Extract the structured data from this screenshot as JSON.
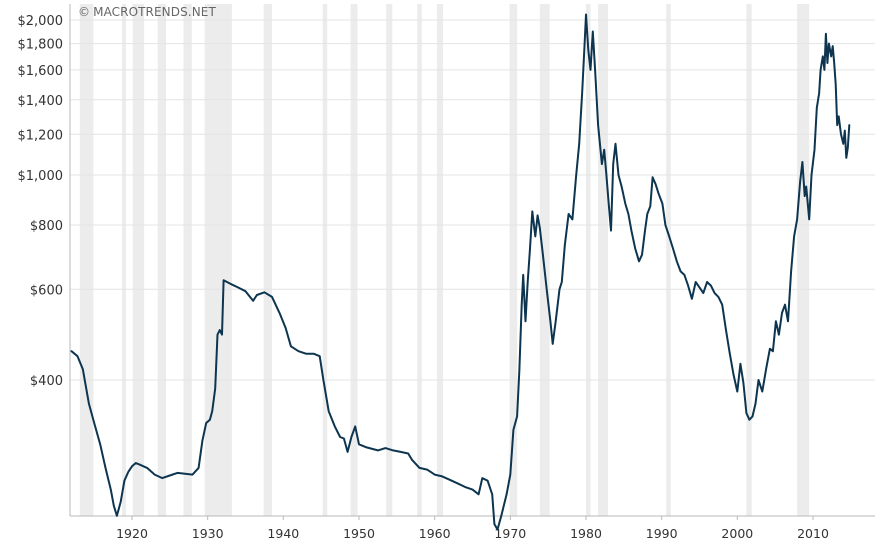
{
  "watermark": {
    "symbol": "©",
    "text": "MACROTRENDS.NET"
  },
  "chart_data": {
    "type": "line",
    "title": "",
    "xlabel": "",
    "ylabel": "",
    "y_scale": "log",
    "xlim": [
      1912.0,
      2014.8
    ],
    "ylim": [
      200,
      2050
    ],
    "x_ticks": [
      {
        "value": 1920,
        "label": "1920"
      },
      {
        "value": 1930,
        "label": "1930"
      },
      {
        "value": 1940,
        "label": "1940"
      },
      {
        "value": 1950,
        "label": "1950"
      },
      {
        "value": 1960,
        "label": "1960"
      },
      {
        "value": 1970,
        "label": "1970"
      },
      {
        "value": 1980,
        "label": "1980"
      },
      {
        "value": 1990,
        "label": "1990"
      },
      {
        "value": 2000,
        "label": "2000"
      },
      {
        "value": 2010,
        "label": "2010"
      }
    ],
    "y_ticks": [
      {
        "value": 400,
        "label": "$400"
      },
      {
        "value": 600,
        "label": "$600"
      },
      {
        "value": 800,
        "label": "$800"
      },
      {
        "value": 1000,
        "label": "$1,000"
      },
      {
        "value": 1200,
        "label": "$1,200"
      },
      {
        "value": 1400,
        "label": "$1,400"
      },
      {
        "value": 1600,
        "label": "$1,600"
      },
      {
        "value": 1800,
        "label": "$1,800"
      },
      {
        "value": 2000,
        "label": "$2,000"
      }
    ],
    "grid": true,
    "colors": {
      "line": "#0d3550",
      "recession": "#ececec",
      "grid": "#e4e4e4",
      "axis": "#b8b8b8"
    },
    "recessions": [
      [
        1913.1,
        1914.9
      ],
      [
        1918.7,
        1919.2
      ],
      [
        1920.1,
        1921.6
      ],
      [
        1923.4,
        1924.5
      ],
      [
        1926.8,
        1927.9
      ],
      [
        1929.6,
        1933.2
      ],
      [
        1937.4,
        1938.5
      ],
      [
        1945.2,
        1945.8
      ],
      [
        1948.9,
        1949.8
      ],
      [
        1953.6,
        1954.4
      ],
      [
        1957.7,
        1958.3
      ],
      [
        1960.3,
        1961.1
      ],
      [
        1969.9,
        1970.9
      ],
      [
        1973.9,
        1975.2
      ],
      [
        1980.0,
        1980.6
      ],
      [
        1981.6,
        1982.9
      ],
      [
        1990.6,
        1991.2
      ],
      [
        2001.2,
        2001.9
      ],
      [
        2007.9,
        2009.5
      ]
    ],
    "series": [
      {
        "values": [
          [
            1912.0,
            455
          ],
          [
            1912.8,
            445
          ],
          [
            1913.5,
            420
          ],
          [
            1914.3,
            360
          ],
          [
            1915.0,
            330
          ],
          [
            1915.8,
            300
          ],
          [
            1916.5,
            270
          ],
          [
            1917.2,
            245
          ],
          [
            1917.6,
            228
          ],
          [
            1918.0,
            218
          ],
          [
            1918.5,
            232
          ],
          [
            1919.0,
            255
          ],
          [
            1919.5,
            265
          ],
          [
            1920.0,
            272
          ],
          [
            1920.5,
            276
          ],
          [
            1921.0,
            274
          ],
          [
            1922.0,
            270
          ],
          [
            1923.0,
            262
          ],
          [
            1924.0,
            258
          ],
          [
            1925.0,
            261
          ],
          [
            1926.0,
            264
          ],
          [
            1927.0,
            263
          ],
          [
            1928.0,
            262
          ],
          [
            1928.8,
            270
          ],
          [
            1929.3,
            305
          ],
          [
            1929.8,
            330
          ],
          [
            1930.3,
            335
          ],
          [
            1930.6,
            348
          ],
          [
            1931.0,
            385
          ],
          [
            1931.3,
            490
          ],
          [
            1931.6,
            500
          ],
          [
            1931.9,
            490
          ],
          [
            1932.1,
            625
          ],
          [
            1933.0,
            615
          ],
          [
            1934.0,
            605
          ],
          [
            1935.0,
            595
          ],
          [
            1936.0,
            570
          ],
          [
            1936.5,
            585
          ],
          [
            1937.5,
            592
          ],
          [
            1938.5,
            580
          ],
          [
            1939.5,
            540
          ],
          [
            1940.3,
            505
          ],
          [
            1941.0,
            465
          ],
          [
            1942.0,
            455
          ],
          [
            1943.0,
            450
          ],
          [
            1944.0,
            450
          ],
          [
            1944.8,
            445
          ],
          [
            1945.3,
            400
          ],
          [
            1946.0,
            348
          ],
          [
            1946.8,
            325
          ],
          [
            1947.5,
            310
          ],
          [
            1948.0,
            308
          ],
          [
            1948.5,
            290
          ],
          [
            1949.0,
            310
          ],
          [
            1949.5,
            325
          ],
          [
            1950.0,
            300
          ],
          [
            1951.0,
            296
          ],
          [
            1952.5,
            292
          ],
          [
            1953.5,
            295
          ],
          [
            1954.5,
            292
          ],
          [
            1955.5,
            290
          ],
          [
            1956.5,
            288
          ],
          [
            1957.0,
            280
          ],
          [
            1958.0,
            270
          ],
          [
            1959.0,
            268
          ],
          [
            1960.0,
            262
          ],
          [
            1961.0,
            260
          ],
          [
            1962.0,
            256
          ],
          [
            1963.0,
            252
          ],
          [
            1964.0,
            248
          ],
          [
            1965.0,
            245
          ],
          [
            1965.8,
            240
          ],
          [
            1966.3,
            258
          ],
          [
            1967.0,
            255
          ],
          [
            1967.6,
            240
          ],
          [
            1967.9,
            210
          ],
          [
            1968.3,
            205
          ],
          [
            1968.8,
            218
          ],
          [
            1969.5,
            240
          ],
          [
            1970.0,
            262
          ],
          [
            1970.4,
            320
          ],
          [
            1970.9,
            340
          ],
          [
            1971.2,
            420
          ],
          [
            1971.5,
            560
          ],
          [
            1971.7,
            640
          ],
          [
            1972.0,
            520
          ],
          [
            1972.3,
            620
          ],
          [
            1972.6,
            720
          ],
          [
            1972.9,
            850
          ],
          [
            1973.3,
            760
          ],
          [
            1973.6,
            835
          ],
          [
            1973.9,
            790
          ],
          [
            1974.3,
            700
          ],
          [
            1974.8,
            600
          ],
          [
            1975.3,
            520
          ],
          [
            1975.6,
            470
          ],
          [
            1976.0,
            520
          ],
          [
            1976.5,
            600
          ],
          [
            1976.8,
            620
          ],
          [
            1977.2,
            730
          ],
          [
            1977.7,
            840
          ],
          [
            1978.2,
            820
          ],
          [
            1978.7,
            1000
          ],
          [
            1979.1,
            1150
          ],
          [
            1979.5,
            1450
          ],
          [
            1979.8,
            1780
          ],
          [
            1980.0,
            2050
          ],
          [
            1980.3,
            1750
          ],
          [
            1980.6,
            1600
          ],
          [
            1980.9,
            1900
          ],
          [
            1981.2,
            1600
          ],
          [
            1981.6,
            1250
          ],
          [
            1982.1,
            1050
          ],
          [
            1982.4,
            1120
          ],
          [
            1982.7,
            1000
          ],
          [
            1983.0,
            880
          ],
          [
            1983.3,
            780
          ],
          [
            1983.6,
            1050
          ],
          [
            1983.9,
            1150
          ],
          [
            1984.3,
            1000
          ],
          [
            1984.7,
            950
          ],
          [
            1985.2,
            880
          ],
          [
            1985.6,
            840
          ],
          [
            1986.0,
            780
          ],
          [
            1986.5,
            720
          ],
          [
            1987.0,
            680
          ],
          [
            1987.4,
            700
          ],
          [
            1987.8,
            780
          ],
          [
            1988.1,
            840
          ],
          [
            1988.5,
            870
          ],
          [
            1988.8,
            990
          ],
          [
            1989.2,
            960
          ],
          [
            1989.6,
            920
          ],
          [
            1990.1,
            880
          ],
          [
            1990.5,
            800
          ],
          [
            1991.0,
            760
          ],
          [
            1991.5,
            720
          ],
          [
            1992.0,
            680
          ],
          [
            1992.5,
            650
          ],
          [
            1993.0,
            640
          ],
          [
            1993.5,
            610
          ],
          [
            1994.0,
            575
          ],
          [
            1994.5,
            620
          ],
          [
            1995.0,
            605
          ],
          [
            1995.5,
            590
          ],
          [
            1996.0,
            620
          ],
          [
            1996.5,
            610
          ],
          [
            1997.0,
            590
          ],
          [
            1997.5,
            580
          ],
          [
            1998.0,
            560
          ],
          [
            1998.5,
            500
          ],
          [
            1999.0,
            450
          ],
          [
            1999.5,
            410
          ],
          [
            2000.0,
            380
          ],
          [
            2000.4,
            430
          ],
          [
            2000.8,
            395
          ],
          [
            2001.2,
            345
          ],
          [
            2001.6,
            335
          ],
          [
            2002.0,
            340
          ],
          [
            2002.4,
            360
          ],
          [
            2002.8,
            400
          ],
          [
            2003.3,
            380
          ],
          [
            2003.8,
            420
          ],
          [
            2004.3,
            460
          ],
          [
            2004.7,
            455
          ],
          [
            2005.1,
            520
          ],
          [
            2005.5,
            490
          ],
          [
            2005.9,
            540
          ],
          [
            2006.3,
            560
          ],
          [
            2006.7,
            520
          ],
          [
            2007.1,
            650
          ],
          [
            2007.5,
            760
          ],
          [
            2007.9,
            820
          ],
          [
            2008.3,
            970
          ],
          [
            2008.6,
            1060
          ],
          [
            2008.9,
            910
          ],
          [
            2009.1,
            950
          ],
          [
            2009.5,
            820
          ],
          [
            2009.8,
            1000
          ],
          [
            2010.2,
            1120
          ],
          [
            2010.5,
            1350
          ],
          [
            2010.8,
            1440
          ],
          [
            2011.0,
            1600
          ],
          [
            2011.3,
            1700
          ],
          [
            2011.5,
            1600
          ],
          [
            2011.7,
            1880
          ],
          [
            2011.9,
            1650
          ],
          [
            2012.1,
            1800
          ],
          [
            2012.4,
            1700
          ],
          [
            2012.6,
            1780
          ],
          [
            2012.8,
            1650
          ],
          [
            2013.0,
            1500
          ],
          [
            2013.2,
            1250
          ],
          [
            2013.4,
            1300
          ],
          [
            2013.7,
            1200
          ],
          [
            2014.0,
            1150
          ],
          [
            2014.2,
            1220
          ],
          [
            2014.4,
            1080
          ],
          [
            2014.6,
            1130
          ],
          [
            2014.8,
            1250
          ]
        ]
      }
    ]
  }
}
